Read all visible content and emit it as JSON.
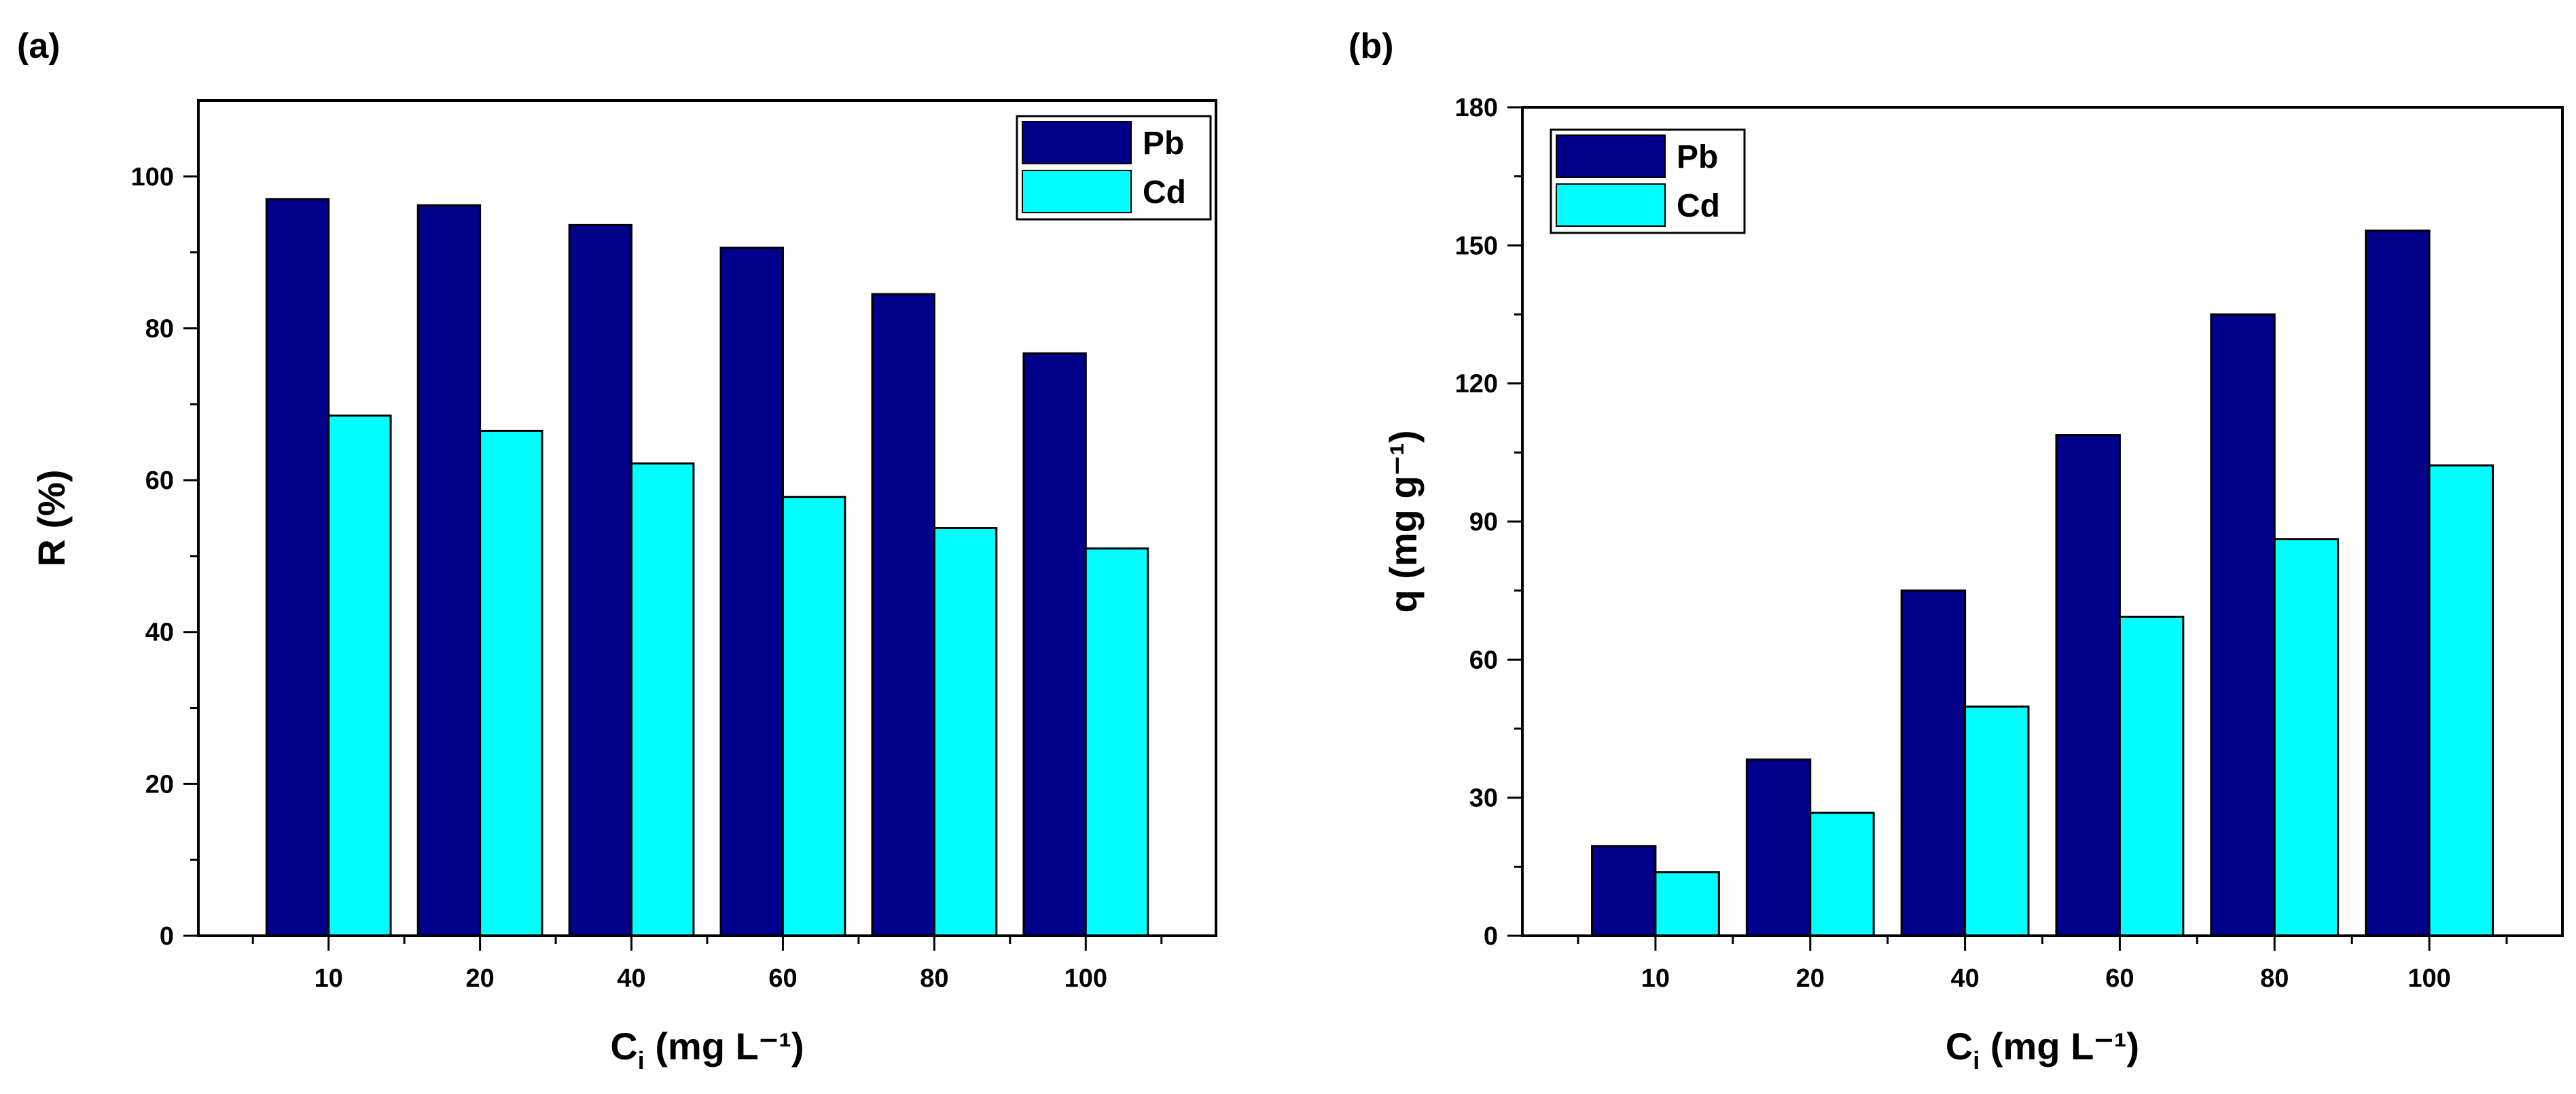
{
  "colors": {
    "pb": "#00008b",
    "cd": "#00ffff",
    "axis": "#000000",
    "edge": "#000000"
  },
  "chart_data": [
    {
      "type": "bar",
      "panel_label": "(a)",
      "categories": [
        "10",
        "20",
        "40",
        "60",
        "80",
        "100"
      ],
      "series": [
        {
          "name": "Pb",
          "values": [
            97.0,
            96.2,
            93.6,
            90.6,
            84.5,
            76.7
          ]
        },
        {
          "name": "Cd",
          "values": [
            68.5,
            66.5,
            62.2,
            57.8,
            53.7,
            51.0
          ]
        }
      ],
      "ylabel": "R (%)",
      "xlabel": {
        "main": "C",
        "sub": "i",
        "rest": " (mg L⁻¹)"
      },
      "ylim": [
        0,
        110
      ],
      "yticks": [
        0,
        20,
        40,
        60,
        80,
        100
      ],
      "legend": "top-right",
      "grid": false
    },
    {
      "type": "bar",
      "panel_label": "(b)",
      "categories": [
        "10",
        "20",
        "40",
        "60",
        "80",
        "100"
      ],
      "series": [
        {
          "name": "Pb",
          "values": [
            19.5,
            38.3,
            75.0,
            108.8,
            135.0,
            153.2
          ]
        },
        {
          "name": "Cd",
          "values": [
            13.8,
            26.7,
            49.8,
            69.3,
            86.2,
            102.2
          ]
        }
      ],
      "ylabel": "q (mg g⁻¹)",
      "xlabel": {
        "main": "C",
        "sub": "i",
        "rest": " (mg L⁻¹)"
      },
      "ylim": [
        0,
        180
      ],
      "yticks": [
        0,
        30,
        60,
        90,
        120,
        150,
        180
      ],
      "legend": "top-left",
      "grid": false
    }
  ]
}
